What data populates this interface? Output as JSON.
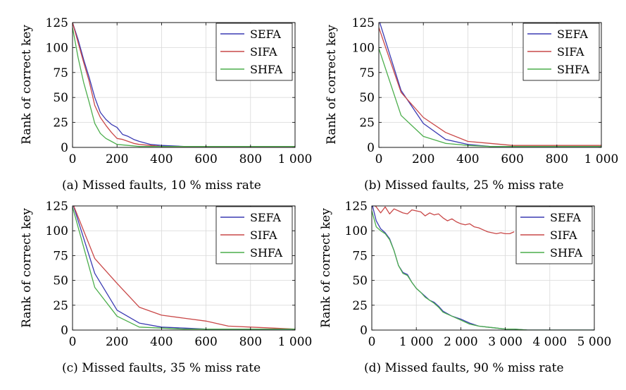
{
  "chart_data": [
    {
      "type": "line",
      "caption": "(a) Missed faults, 10 % miss rate",
      "ylabel": "Rank of correct key",
      "xlim": [
        0,
        1000
      ],
      "ylim": [
        0,
        125
      ],
      "xticks": [
        0,
        200,
        400,
        600,
        800,
        1000
      ],
      "xtick_labels": [
        "0",
        "200",
        "400",
        "600",
        "800",
        "1 000"
      ],
      "yticks": [
        0,
        25,
        50,
        75,
        100,
        125
      ],
      "yticks_labels": [
        "0",
        "25",
        "50",
        "75",
        "100",
        "125"
      ],
      "grid": true,
      "legend_position": "top-right",
      "series": [
        {
          "name": "SEFA",
          "color": "#3b3bb3",
          "x": [
            0,
            25,
            50,
            75,
            100,
            125,
            150,
            175,
            200,
            225,
            250,
            275,
            300,
            350,
            400,
            500,
            600,
            700,
            800,
            900,
            1000
          ],
          "y": [
            125,
            108,
            88,
            70,
            50,
            35,
            28,
            23,
            20,
            13,
            11,
            8,
            6,
            3,
            2,
            1,
            1,
            1,
            1,
            1,
            1
          ]
        },
        {
          "name": "SIFA",
          "color": "#c94848",
          "x": [
            0,
            25,
            50,
            75,
            100,
            125,
            150,
            175,
            200,
            225,
            250,
            275,
            300,
            350,
            400,
            500,
            600,
            700,
            800,
            900,
            1000
          ],
          "y": [
            125,
            105,
            85,
            66,
            42,
            30,
            22,
            15,
            9,
            8,
            6,
            4,
            3,
            2,
            1,
            1,
            1,
            1,
            1,
            1,
            1
          ]
        },
        {
          "name": "SHFA",
          "color": "#4cae4c",
          "x": [
            0,
            25,
            50,
            75,
            100,
            125,
            150,
            175,
            200,
            250,
            300,
            400,
            500,
            600,
            700,
            800,
            900,
            1000
          ],
          "y": [
            120,
            90,
            65,
            45,
            24,
            14,
            9,
            6,
            3,
            2,
            1,
            1,
            1,
            1,
            1,
            1,
            1,
            1
          ]
        }
      ]
    },
    {
      "type": "line",
      "caption": "(b) Missed faults, 25 % miss rate",
      "ylabel": "Rank of correct key",
      "xlim": [
        0,
        1000
      ],
      "ylim": [
        0,
        125
      ],
      "xticks": [
        0,
        200,
        400,
        600,
        800,
        1000
      ],
      "xtick_labels": [
        "0",
        "200",
        "400",
        "600",
        "800",
        "1 000"
      ],
      "yticks": [
        0,
        25,
        50,
        75,
        100,
        125
      ],
      "yticks_labels": [
        "0",
        "25",
        "50",
        "75",
        "100",
        "125"
      ],
      "grid": true,
      "legend_position": "top-right",
      "series": [
        {
          "name": "SEFA",
          "color": "#3b3bb3",
          "x": [
            0,
            100,
            200,
            300,
            400,
            500,
            600,
            700,
            800,
            900,
            1000
          ],
          "y": [
            128,
            57,
            24,
            8,
            3,
            1,
            1,
            1,
            1,
            1,
            1
          ]
        },
        {
          "name": "SIFA",
          "color": "#c94848",
          "x": [
            0,
            100,
            200,
            300,
            400,
            500,
            600,
            700,
            800,
            900,
            1000
          ],
          "y": [
            120,
            55,
            30,
            15,
            6,
            4,
            2,
            2,
            2,
            2,
            2
          ]
        },
        {
          "name": "SHFA",
          "color": "#4cae4c",
          "x": [
            0,
            100,
            200,
            300,
            400,
            500,
            600,
            700,
            800,
            900,
            1000
          ],
          "y": [
            99,
            32,
            11,
            4,
            2,
            1,
            1,
            1,
            1,
            1,
            1
          ]
        }
      ]
    },
    {
      "type": "line",
      "caption": "(c) Missed faults, 35 % miss rate",
      "ylabel": "Rank of correct key",
      "xlim": [
        0,
        1000
      ],
      "ylim": [
        0,
        125
      ],
      "xticks": [
        0,
        200,
        400,
        600,
        800,
        1000
      ],
      "xtick_labels": [
        "0",
        "200",
        "400",
        "600",
        "800",
        "1 000"
      ],
      "yticks": [
        0,
        25,
        50,
        75,
        100,
        125
      ],
      "yticks_labels": [
        "0",
        "25",
        "50",
        "75",
        "100",
        "125"
      ],
      "grid": true,
      "legend_position": "top-right",
      "series": [
        {
          "name": "SEFA",
          "color": "#3b3bb3",
          "x": [
            0,
            100,
            200,
            300,
            400,
            500,
            600,
            700,
            800,
            900,
            1000
          ],
          "y": [
            128,
            57,
            20,
            7,
            3,
            2,
            1,
            1,
            1,
            1,
            1
          ]
        },
        {
          "name": "SIFA",
          "color": "#c94848",
          "x": [
            0,
            100,
            200,
            300,
            400,
            500,
            600,
            700,
            800,
            900,
            1000
          ],
          "y": [
            128,
            72,
            47,
            23,
            15,
            12,
            9,
            4,
            3,
            2,
            1
          ]
        },
        {
          "name": "SHFA",
          "color": "#4cae4c",
          "x": [
            0,
            100,
            200,
            300,
            400,
            500,
            600,
            700,
            800,
            900,
            1000
          ],
          "y": [
            124,
            43,
            14,
            3,
            2,
            1,
            1,
            1,
            1,
            1,
            1
          ]
        }
      ]
    },
    {
      "type": "line",
      "caption": "(d) Missed faults, 90 % miss rate",
      "ylabel": "Rank of correct key",
      "xlim": [
        0,
        5000
      ],
      "ylim": [
        0,
        125
      ],
      "xticks": [
        0,
        1000,
        2000,
        3000,
        4000,
        5000
      ],
      "xtick_labels": [
        "0",
        "1 000",
        "2 000",
        "3 000",
        "4 000",
        "5 000"
      ],
      "yticks": [
        0,
        25,
        50,
        75,
        100,
        125
      ],
      "yticks_labels": [
        "0",
        "25",
        "50",
        "75",
        "100",
        "125"
      ],
      "grid": true,
      "legend_position": "top-right",
      "series": [
        {
          "name": "SEFA",
          "color": "#3b3bb3",
          "x": [
            0,
            100,
            200,
            300,
            400,
            500,
            600,
            700,
            800,
            900,
            1000,
            1100,
            1200,
            1300,
            1400,
            1500,
            1600,
            1800,
            2000,
            2200,
            2400,
            2600,
            2800,
            3000,
            3200,
            3500,
            4000,
            4500,
            5000
          ],
          "y": [
            128,
            110,
            102,
            98,
            92,
            80,
            65,
            58,
            56,
            48,
            42,
            38,
            34,
            30,
            28,
            24,
            19,
            14,
            11,
            7,
            4,
            3,
            2,
            1,
            1,
            0,
            0,
            0,
            0
          ]
        },
        {
          "name": "SIFA",
          "color": "#c94848",
          "x": [
            0,
            100,
            200,
            300,
            400,
            500,
            600,
            700,
            800,
            900,
            1000,
            1100,
            1200,
            1300,
            1400,
            1500,
            1600,
            1700,
            1800,
            1900,
            2000,
            2100,
            2200,
            2300,
            2400,
            2500,
            2600,
            2700,
            2800,
            2900,
            3000,
            3100,
            3200
          ],
          "y": [
            128,
            124,
            118,
            124,
            117,
            122,
            120,
            118,
            117,
            121,
            120,
            119,
            115,
            118,
            116,
            117,
            113,
            110,
            112,
            109,
            107,
            106,
            107,
            104,
            103,
            101,
            99,
            98,
            97,
            98,
            97,
            97,
            99
          ]
        },
        {
          "name": "SHFA",
          "color": "#4cae4c",
          "x": [
            0,
            100,
            200,
            300,
            400,
            500,
            600,
            700,
            800,
            900,
            1000,
            1100,
            1200,
            1300,
            1400,
            1500,
            1600,
            1800,
            2000,
            2200,
            2400,
            2600,
            2800,
            3000,
            3200,
            3500,
            4000,
            4500,
            5000
          ],
          "y": [
            120,
            104,
            100,
            97,
            91,
            80,
            65,
            57,
            55,
            48,
            42,
            38,
            33,
            30,
            27,
            23,
            18,
            14,
            10,
            6,
            4,
            3,
            2,
            1,
            1,
            0,
            0,
            0,
            0
          ]
        }
      ]
    }
  ]
}
